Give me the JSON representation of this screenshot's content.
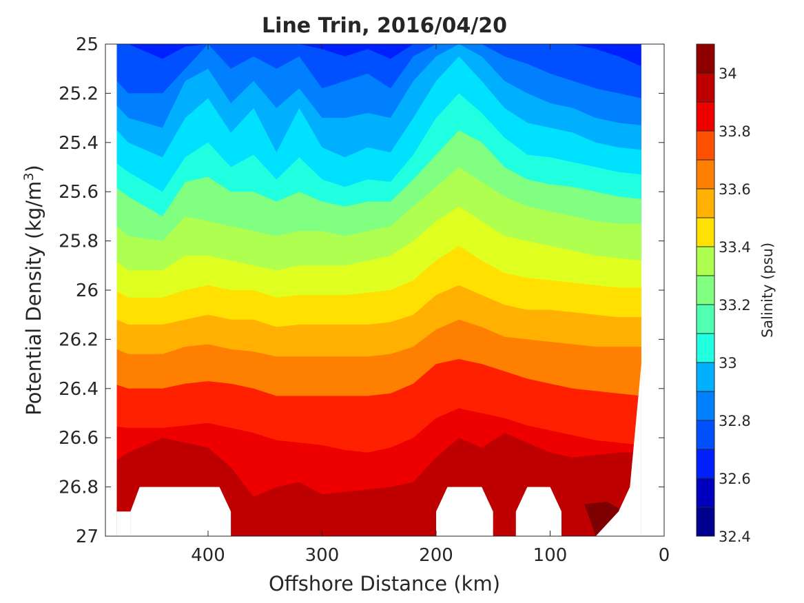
{
  "chart_data": {
    "type": "heatmap",
    "title": "Line Trin, 2016/04/20",
    "xlabel": "Offshore Distance (km)",
    "ylabel_main": "Potential Density (kg/m",
    "ylabel_sup": "3",
    "ylabel_close": ")",
    "xlim": [
      490,
      0
    ],
    "ylim": [
      25,
      27
    ],
    "x_reversed": true,
    "y_reversed": true,
    "xticks": [
      400,
      300,
      200,
      100,
      0
    ],
    "xtick_labels": [
      "400",
      "300",
      "200",
      "100",
      "0"
    ],
    "yticks": [
      25,
      25.2,
      25.4,
      25.6,
      25.8,
      26,
      26.2,
      26.4,
      26.6,
      26.8,
      27
    ],
    "ytick_labels": [
      "25",
      "25.2",
      "25.4",
      "25.6",
      "25.8",
      "26",
      "26.2",
      "26.4",
      "26.6",
      "26.8",
      "27"
    ],
    "colorbar": {
      "label": "Salinity (psu)",
      "range": [
        32.4,
        34.1
      ],
      "tick_values": [
        32.4,
        32.6,
        32.8,
        33,
        33.2,
        33.4,
        33.6,
        33.8,
        34
      ],
      "tick_labels": [
        "32.4",
        "32.6",
        "32.8",
        "33",
        "33.2",
        "33.4",
        "33.6",
        "33.8",
        "34"
      ],
      "levels": [
        32.4,
        32.5,
        32.6,
        32.7,
        32.8,
        32.9,
        33.0,
        33.1,
        33.2,
        33.3,
        33.4,
        33.5,
        33.6,
        33.7,
        33.8,
        33.9,
        34.0,
        34.1
      ],
      "colors": [
        "#00008f",
        "#0000bf",
        "#0000ef",
        "#0020ff",
        "#0050ff",
        "#0080ff",
        "#00b0ff",
        "#00e0ff",
        "#20ffdf",
        "#50ffaf",
        "#80ff80",
        "#afff50",
        "#dfff20",
        "#ffe000",
        "#ffb000",
        "#ff8000",
        "#ff5000",
        "#ff2000",
        "#ef0000",
        "#bf0000",
        "#8f0000"
      ]
    },
    "contour_fill_colors": {
      "32.7-32.8": "#0020ff",
      "32.8-32.9": "#0050ff",
      "32.9-33.0": "#0080ff",
      "33.0-33.1": "#00b0ff",
      "33.1-33.2": "#00e0ff",
      "33.2-33.3": "#20ffdf",
      "33.3-33.4": "#80ff80",
      "33.4-33.5": "#afff50",
      "33.5-33.6": "#dfff20",
      "33.6-33.7": "#ffe000",
      "33.7-33.8": "#ffb000",
      "33.8-33.9": "#ff8000",
      "33.9-34.0": "#ff2000",
      "34.0-34.1": "#ef0000",
      "34.1+": "#bf0000",
      "max": "#7f0000"
    },
    "isohalines": [
      {
        "salinity": 32.8,
        "x": [
          490,
          470,
          440,
          420,
          400,
          380,
          360,
          340,
          320,
          300,
          280,
          260,
          240,
          220,
          200,
          180,
          160,
          140,
          120,
          100,
          80,
          60,
          40,
          20,
          0
        ],
        "y": [
          25.0,
          25.0,
          25.06,
          25.01,
          25.0,
          25.0,
          25.0,
          25.0,
          25.0,
          25.02,
          25.05,
          25.02,
          25.06,
          25.0,
          25.0,
          25.0,
          25.0,
          25.0,
          25.0,
          25.0,
          25.0,
          25.02,
          25.05,
          25.09,
          25.1
        ]
      },
      {
        "salinity": 32.9,
        "x": [
          490,
          470,
          440,
          420,
          400,
          380,
          360,
          340,
          320,
          300,
          280,
          260,
          240,
          220,
          200,
          180,
          160,
          140,
          120,
          100,
          80,
          60,
          40,
          20,
          0
        ],
        "y": [
          25.1,
          25.2,
          25.2,
          25.1,
          25.0,
          25.1,
          25.05,
          25.1,
          25.05,
          25.18,
          25.15,
          25.12,
          25.18,
          25.05,
          25.0,
          25.0,
          25.0,
          25.05,
          25.08,
          25.12,
          25.15,
          25.18,
          25.2,
          25.22,
          25.22
        ]
      },
      {
        "salinity": 33.0,
        "x": [
          490,
          470,
          440,
          420,
          400,
          380,
          360,
          340,
          320,
          300,
          280,
          260,
          240,
          220,
          200,
          180,
          160,
          140,
          120,
          100,
          80,
          60,
          40,
          20,
          0
        ],
        "y": [
          25.2,
          25.3,
          25.34,
          25.15,
          25.1,
          25.24,
          25.15,
          25.26,
          25.18,
          25.3,
          25.3,
          25.28,
          25.3,
          25.15,
          25.05,
          25.0,
          25.05,
          25.15,
          25.2,
          25.24,
          25.26,
          25.3,
          25.32,
          25.33,
          25.33
        ]
      },
      {
        "salinity": 33.1,
        "x": [
          490,
          470,
          440,
          420,
          400,
          380,
          360,
          340,
          320,
          300,
          280,
          260,
          240,
          220,
          200,
          180,
          160,
          140,
          120,
          100,
          80,
          60,
          40,
          20,
          0
        ],
        "y": [
          25.3,
          25.4,
          25.46,
          25.3,
          25.22,
          25.36,
          25.26,
          25.44,
          25.26,
          25.42,
          25.46,
          25.42,
          25.44,
          25.3,
          25.15,
          25.05,
          25.15,
          25.26,
          25.32,
          25.34,
          25.36,
          25.4,
          25.42,
          25.43,
          25.43
        ]
      },
      {
        "salinity": 33.2,
        "x": [
          490,
          470,
          440,
          420,
          400,
          380,
          360,
          340,
          320,
          300,
          280,
          260,
          240,
          220,
          200,
          180,
          160,
          140,
          120,
          100,
          80,
          60,
          40,
          20,
          0
        ],
        "y": [
          25.45,
          25.52,
          25.6,
          25.46,
          25.4,
          25.5,
          25.45,
          25.55,
          25.46,
          25.55,
          25.58,
          25.55,
          25.56,
          25.45,
          25.3,
          25.2,
          25.28,
          25.38,
          25.45,
          25.46,
          25.48,
          25.5,
          25.52,
          25.53,
          25.53
        ]
      },
      {
        "salinity": 33.3,
        "x": [
          490,
          470,
          440,
          420,
          400,
          380,
          360,
          340,
          320,
          300,
          280,
          260,
          240,
          220,
          200,
          180,
          160,
          140,
          120,
          100,
          80,
          60,
          40,
          20,
          0
        ],
        "y": [
          25.55,
          25.62,
          25.7,
          25.56,
          25.54,
          25.6,
          25.6,
          25.64,
          25.6,
          25.64,
          25.66,
          25.64,
          25.64,
          25.55,
          25.45,
          25.35,
          25.4,
          25.5,
          25.55,
          25.57,
          25.58,
          25.6,
          25.62,
          25.63,
          25.63
        ]
      },
      {
        "salinity": 33.4,
        "x": [
          490,
          470,
          440,
          420,
          400,
          380,
          360,
          340,
          320,
          300,
          280,
          260,
          240,
          220,
          200,
          180,
          160,
          140,
          120,
          100,
          80,
          60,
          40,
          20,
          0
        ],
        "y": [
          25.7,
          25.78,
          25.8,
          25.7,
          25.72,
          25.74,
          25.76,
          25.78,
          25.76,
          25.76,
          25.78,
          25.76,
          25.74,
          25.66,
          25.58,
          25.5,
          25.56,
          25.62,
          25.66,
          25.68,
          25.7,
          25.72,
          25.73,
          25.73,
          25.73
        ]
      },
      {
        "salinity": 33.5,
        "x": [
          490,
          470,
          440,
          420,
          400,
          380,
          360,
          340,
          320,
          300,
          280,
          260,
          240,
          220,
          200,
          180,
          160,
          140,
          120,
          100,
          80,
          60,
          40,
          20,
          0
        ],
        "y": [
          25.85,
          25.92,
          25.92,
          25.86,
          25.86,
          25.88,
          25.9,
          25.92,
          25.9,
          25.9,
          25.9,
          25.88,
          25.86,
          25.8,
          25.72,
          25.66,
          25.72,
          25.78,
          25.8,
          25.82,
          25.84,
          25.86,
          25.87,
          25.88,
          25.88
        ]
      },
      {
        "salinity": 33.6,
        "x": [
          490,
          470,
          440,
          420,
          400,
          380,
          360,
          340,
          320,
          300,
          280,
          260,
          240,
          220,
          200,
          180,
          160,
          140,
          120,
          100,
          80,
          60,
          40,
          20,
          0
        ],
        "y": [
          25.98,
          26.03,
          26.03,
          26.0,
          25.98,
          26.0,
          26.0,
          26.03,
          26.02,
          26.02,
          26.02,
          26.01,
          26.0,
          25.96,
          25.88,
          25.82,
          25.88,
          25.93,
          25.95,
          25.96,
          25.97,
          25.98,
          25.99,
          25.99,
          25.99
        ]
      },
      {
        "salinity": 33.7,
        "x": [
          490,
          470,
          440,
          420,
          400,
          380,
          360,
          340,
          320,
          300,
          280,
          260,
          240,
          220,
          200,
          180,
          160,
          140,
          120,
          100,
          80,
          60,
          40,
          20,
          0
        ],
        "y": [
          26.1,
          26.14,
          26.14,
          26.12,
          26.1,
          26.12,
          26.12,
          26.15,
          26.14,
          26.14,
          26.14,
          26.14,
          26.13,
          26.1,
          26.02,
          25.98,
          26.02,
          26.06,
          26.08,
          26.08,
          26.09,
          26.1,
          26.11,
          26.11,
          26.11
        ]
      },
      {
        "salinity": 33.8,
        "x": [
          490,
          470,
          440,
          420,
          400,
          380,
          360,
          340,
          320,
          300,
          280,
          260,
          240,
          220,
          200,
          180,
          160,
          140,
          120,
          100,
          80,
          60,
          40,
          20,
          0
        ],
        "y": [
          26.22,
          26.26,
          26.26,
          26.23,
          26.22,
          26.24,
          26.25,
          26.27,
          26.27,
          26.27,
          26.27,
          26.27,
          26.26,
          26.23,
          26.16,
          26.12,
          26.15,
          26.19,
          26.2,
          26.21,
          26.22,
          26.23,
          26.23,
          26.23,
          26.23
        ]
      },
      {
        "salinity": 33.9,
        "x": [
          490,
          470,
          440,
          420,
          400,
          380,
          360,
          340,
          320,
          300,
          280,
          260,
          240,
          220,
          200,
          180,
          160,
          140,
          120,
          100,
          80,
          60,
          40,
          20,
          0
        ],
        "y": [
          26.37,
          26.4,
          26.4,
          26.38,
          26.37,
          26.38,
          26.4,
          26.43,
          26.43,
          26.43,
          26.43,
          26.43,
          26.42,
          26.38,
          26.3,
          26.28,
          26.3,
          26.33,
          26.36,
          26.38,
          26.4,
          26.41,
          26.42,
          26.43,
          26.43
        ]
      },
      {
        "salinity": 34.0,
        "x": [
          490,
          470,
          440,
          420,
          400,
          380,
          360,
          340,
          320,
          300,
          280,
          260,
          240,
          220,
          200,
          180,
          160,
          140,
          120,
          100,
          80,
          60,
          40,
          20,
          0
        ],
        "y": [
          26.55,
          26.56,
          26.56,
          26.55,
          26.54,
          26.56,
          26.58,
          26.61,
          26.62,
          26.63,
          26.65,
          26.66,
          26.64,
          26.6,
          26.52,
          26.48,
          26.5,
          26.52,
          26.55,
          26.57,
          26.59,
          26.61,
          26.62,
          26.63,
          26.63
        ]
      },
      {
        "salinity": 34.1,
        "x": [
          490,
          470,
          440,
          420,
          400,
          380,
          360,
          340,
          320,
          300,
          280,
          260,
          240,
          220,
          200,
          180,
          160,
          140,
          120,
          100,
          80,
          60,
          40,
          20,
          0
        ],
        "y": [
          26.72,
          26.66,
          26.6,
          26.62,
          26.64,
          26.72,
          26.84,
          26.8,
          26.78,
          26.83,
          26.82,
          26.81,
          26.8,
          26.78,
          26.68,
          26.6,
          26.64,
          26.58,
          26.62,
          26.66,
          26.68,
          26.67,
          26.66,
          26.66,
          26.66
        ]
      }
    ],
    "data_bounds": {
      "x_offshore_edge": 480,
      "x_onshore_edge": 20,
      "bottom_mask": [
        {
          "x": [
            480,
            468,
            468,
            480
          ],
          "y": [
            26.9,
            26.9,
            27,
            27
          ]
        },
        {
          "x": [
            468,
            460,
            390,
            380,
            380
          ],
          "y": [
            26.9,
            26.8,
            26.8,
            26.9,
            27
          ]
        },
        {
          "x": [
            200,
            190,
            160,
            150,
            150
          ],
          "y": [
            26.9,
            26.8,
            26.8,
            26.9,
            27
          ]
        },
        {
          "x": [
            130,
            120,
            100,
            90,
            90
          ],
          "y": [
            26.9,
            26.8,
            26.8,
            26.9,
            27
          ]
        },
        {
          "x": [
            60,
            40,
            30,
            20
          ],
          "y": [
            27,
            26.9,
            26.8,
            26.3
          ]
        }
      ]
    }
  }
}
